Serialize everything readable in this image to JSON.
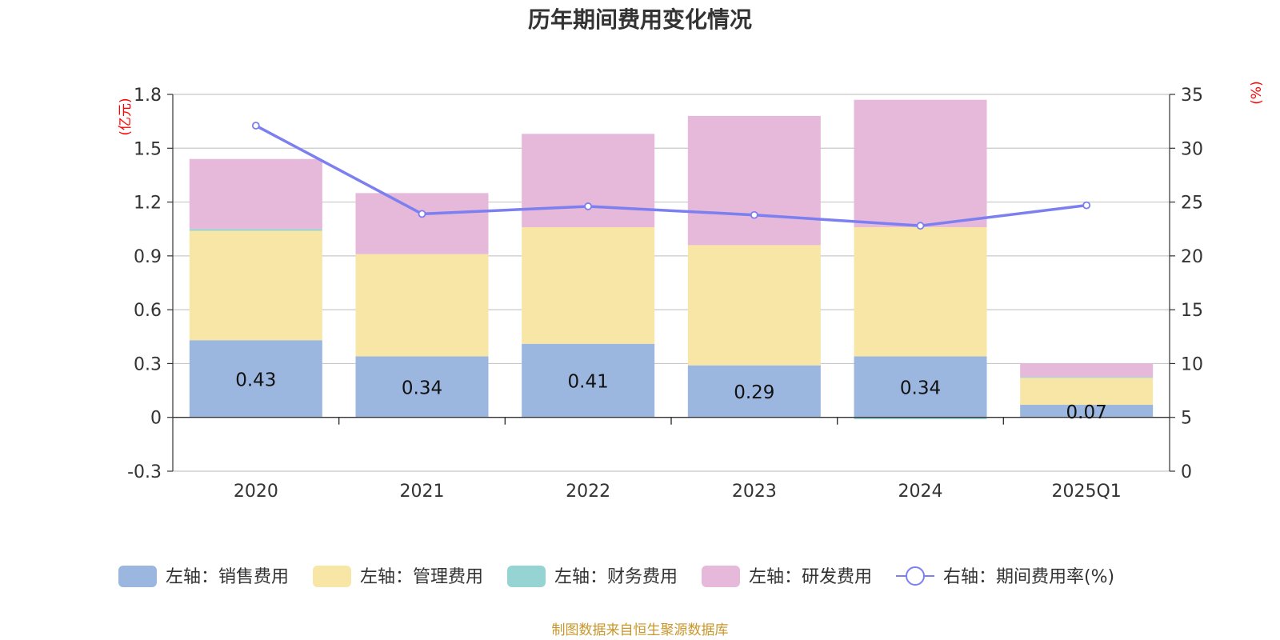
{
  "chart_data": {
    "type": "bar",
    "stacked": true,
    "title": "历年期间费用变化情况",
    "categories": [
      "2020",
      "2021",
      "2022",
      "2023",
      "2024",
      "2025Q1"
    ],
    "left_axis": {
      "unit": "(亿元)",
      "ylim": [
        -0.3,
        1.8
      ],
      "ticks": [
        "-0.3",
        "0",
        "0.3",
        "0.6",
        "0.9",
        "1.2",
        "1.5",
        "1.8"
      ],
      "tick_values": [
        -0.3,
        0,
        0.3,
        0.6,
        0.9,
        1.2,
        1.5,
        1.8
      ]
    },
    "right_axis": {
      "unit": "(%)",
      "ylim": [
        0,
        35
      ],
      "ticks": [
        "0",
        "5",
        "10",
        "15",
        "20",
        "25",
        "30",
        "35"
      ],
      "tick_values": [
        0,
        5,
        10,
        15,
        20,
        25,
        30,
        35
      ]
    },
    "series": [
      {
        "name": "左轴：销售费用",
        "axis": "left",
        "color": "#9bb7e0",
        "values": [
          0.43,
          0.34,
          0.41,
          0.29,
          0.34,
          0.07
        ],
        "labels": [
          "0.43",
          "0.34",
          "0.41",
          "0.29",
          "0.34",
          "0.07"
        ]
      },
      {
        "name": "左轴：管理费用",
        "axis": "left",
        "color": "#f7e6a6",
        "values": [
          0.61,
          0.57,
          0.65,
          0.67,
          0.72,
          0.15
        ]
      },
      {
        "name": "左轴：财务费用",
        "axis": "left",
        "color": "#96d4d3",
        "values": [
          0.01,
          0.0,
          0.0,
          0.0,
          -0.01,
          0.005
        ]
      },
      {
        "name": "左轴：研发费用",
        "axis": "left",
        "color": "#e6b8d9",
        "values": [
          0.39,
          0.34,
          0.52,
          0.72,
          0.71,
          0.075
        ]
      },
      {
        "name": "右轴：期间费用率(%)",
        "axis": "right",
        "type": "line",
        "color": "#7b7ff0",
        "values": [
          32.1,
          23.9,
          24.6,
          23.8,
          22.8,
          24.7
        ]
      }
    ]
  },
  "source_text": "制图数据来自恒生聚源数据库"
}
